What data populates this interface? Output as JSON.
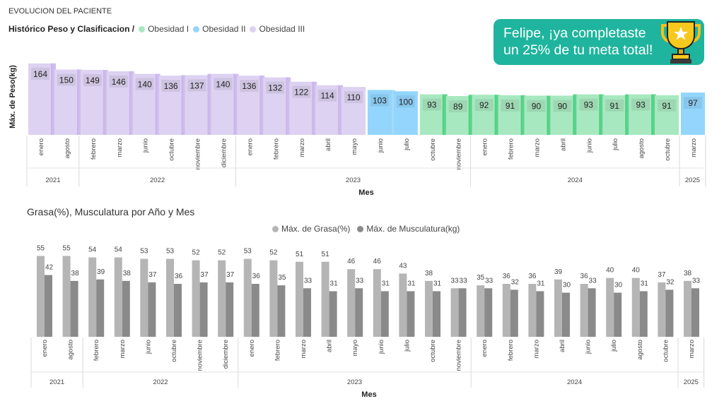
{
  "page_title": "EVOLUCION DEL PACIENTE",
  "banner": {
    "line1": "Felipe, ¡ya completaste",
    "line2": "un 25% de tu meta total!",
    "icon": "trophy-icon"
  },
  "colors": {
    "obesidad1": "#a8e8c0",
    "obesidad1_edge": "#3dcc78",
    "obesidad2": "#93d5fc",
    "obesidad3": "#ddd2f1",
    "obesidad3_edge": "#c7b0ea",
    "grasa": "#b5b5b5",
    "musculo": "#8a8a8a",
    "banner": "#1fb49e"
  },
  "chart_data": [
    {
      "type": "bar",
      "title": "Histórico Peso y Clasificacion /",
      "xlabel": "Mes",
      "ylabel": "Máx. de Peso(kg)",
      "ylim": [
        0,
        175
      ],
      "legend": [
        {
          "key": "I",
          "label": "Obesidad I"
        },
        {
          "key": "II",
          "label": "Obesidad II"
        },
        {
          "key": "III",
          "label": "Obesidad III"
        }
      ],
      "categories": [
        "enero",
        "agosto",
        "febrero",
        "marzo",
        "junio",
        "octubre",
        "noviembre",
        "diciembre",
        "enero",
        "febrero",
        "marzo",
        "abril",
        "mayo",
        "junio",
        "julio",
        "octubre",
        "noviembre",
        "enero",
        "febrero",
        "marzo",
        "abril",
        "junio",
        "julio",
        "agosto",
        "octubre",
        "marzo"
      ],
      "values": [
        164,
        150,
        149,
        146,
        140,
        136,
        137,
        140,
        136,
        132,
        122,
        114,
        110,
        103,
        100,
        93,
        89,
        92,
        91,
        90,
        90,
        93,
        91,
        93,
        91,
        97
      ],
      "classes": [
        "III",
        "III",
        "III",
        "III",
        "III",
        "III",
        "III",
        "III",
        "III",
        "III",
        "III",
        "III",
        "III",
        "II",
        "II",
        "I",
        "I",
        "I",
        "I",
        "I",
        "I",
        "I",
        "I",
        "I",
        "I",
        "II"
      ],
      "years": [
        {
          "label": "2021",
          "count": 2
        },
        {
          "label": "2022",
          "count": 6
        },
        {
          "label": "2023",
          "count": 9
        },
        {
          "label": "2024",
          "count": 8
        },
        {
          "label": "2025",
          "count": 1
        }
      ]
    },
    {
      "type": "bar",
      "title": "Grasa(%), Musculatura por Año y Mes",
      "xlabel": "Mes",
      "ylim": [
        0,
        60
      ],
      "categories": [
        "enero",
        "agosto",
        "febrero",
        "marzo",
        "junio",
        "octubre",
        "noviembre",
        "diciembre",
        "enero",
        "febrero",
        "marzo",
        "abril",
        "mayo",
        "junio",
        "julio",
        "octubre",
        "noviembre",
        "enero",
        "febrero",
        "marzo",
        "abril",
        "junio",
        "julio",
        "agosto",
        "octubre",
        "marzo"
      ],
      "series": [
        {
          "name": "Máx. de Grasa(%)",
          "values": [
            55,
            55,
            54,
            54,
            53,
            53,
            52,
            52,
            53,
            52,
            51,
            51,
            46,
            46,
            43,
            38,
            33,
            35,
            36,
            36,
            39,
            36,
            40,
            40,
            37,
            38
          ]
        },
        {
          "name": "Máx. de Musculatura(kg)",
          "values": [
            42,
            38,
            39,
            38,
            37,
            36,
            37,
            37,
            36,
            35,
            33,
            31,
            33,
            31,
            31,
            31,
            33,
            33,
            32,
            31,
            30,
            33,
            30,
            31,
            32,
            33
          ]
        }
      ],
      "years": [
        {
          "label": "2021",
          "count": 2
        },
        {
          "label": "2022",
          "count": 6
        },
        {
          "label": "2023",
          "count": 9
        },
        {
          "label": "2024",
          "count": 8
        },
        {
          "label": "2025",
          "count": 1
        }
      ]
    }
  ]
}
